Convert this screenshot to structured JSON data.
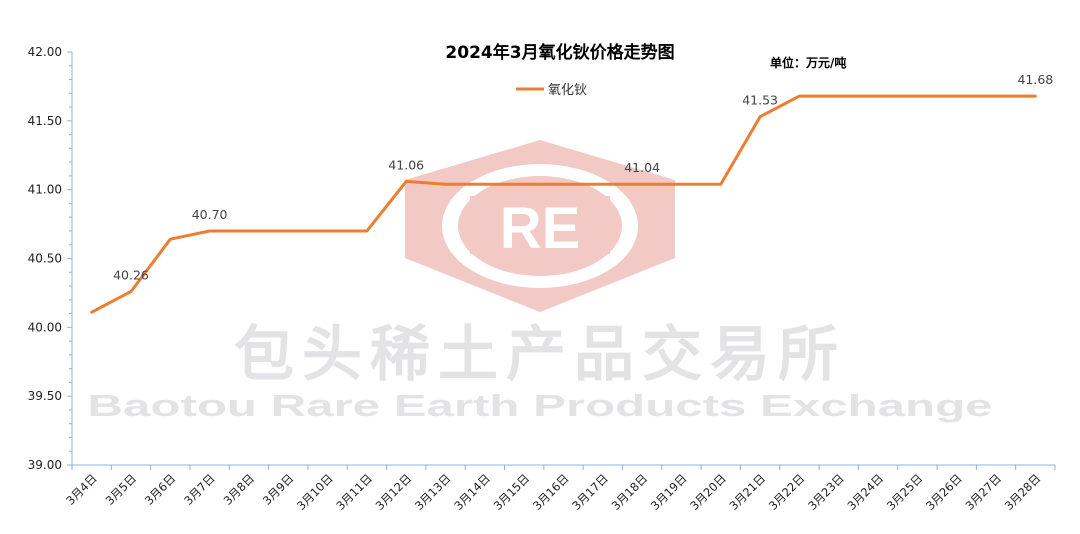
{
  "chart_data": {
    "type": "line",
    "title": "2024年3月氧化钬价格走势图",
    "unit_note": "单位：万元/吨",
    "categories": [
      "3月4日",
      "3月5日",
      "3月6日",
      "3月7日",
      "3月8日",
      "3月9日",
      "3月10日",
      "3月11日",
      "3月12日",
      "3月13日",
      "3月14日",
      "3月15日",
      "3月16日",
      "3月17日",
      "3月18日",
      "3月19日",
      "3月20日",
      "3月21日",
      "3月22日",
      "3月23日",
      "3月24日",
      "3月25日",
      "3月26日",
      "3月27日",
      "3月28日"
    ],
    "series": [
      {
        "name": "氧化钬",
        "color": "#ED7D31",
        "values": [
          40.11,
          40.26,
          40.64,
          40.7,
          40.7,
          40.7,
          40.7,
          40.7,
          41.06,
          41.04,
          41.04,
          41.04,
          41.04,
          41.04,
          41.04,
          41.04,
          41.04,
          41.53,
          41.68,
          41.68,
          41.68,
          41.68,
          41.68,
          41.68,
          41.68
        ]
      }
    ],
    "data_labels": [
      {
        "index": 1,
        "text": "40.26"
      },
      {
        "index": 3,
        "text": "40.70"
      },
      {
        "index": 8,
        "text": "41.06"
      },
      {
        "index": 14,
        "text": "41.04"
      },
      {
        "index": 17,
        "text": "41.53"
      },
      {
        "index": 24,
        "text": "41.68"
      }
    ],
    "y_ticks": [
      "39.00",
      "39.50",
      "40.00",
      "40.50",
      "41.00",
      "41.50",
      "42.00"
    ],
    "ylim": [
      39.0,
      42.0
    ],
    "legend_position": "top-center",
    "grid": false
  },
  "watermark": {
    "logo_text": "RE",
    "name_cn": "包头稀土产品交易所",
    "name_en": "Baotou Rare Earth Products Exchange",
    "logo_color": "#f2c9c5"
  }
}
